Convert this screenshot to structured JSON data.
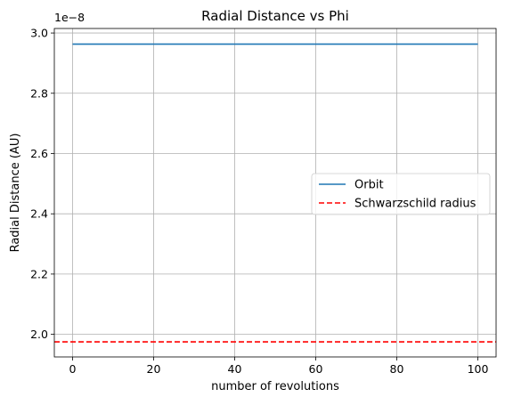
{
  "chart_data": {
    "type": "line",
    "title": "Radial Distance vs Phi",
    "xlabel": "number of revolutions",
    "ylabel": "Radial Distance (AU)",
    "y_offset_label": "1e−8",
    "xlim": [
      -4.5,
      104.5
    ],
    "ylim": [
      1.925,
      3.015
    ],
    "x_ticks": [
      0,
      20,
      40,
      60,
      80,
      100
    ],
    "x_tick_labels": [
      "0",
      "20",
      "40",
      "60",
      "80",
      "100"
    ],
    "y_ticks": [
      2.0,
      2.2,
      2.4,
      2.6,
      2.8,
      3.0
    ],
    "y_tick_labels": [
      "2.0",
      "2.2",
      "2.4",
      "2.6",
      "2.8",
      "3.0"
    ],
    "grid": true,
    "legend_position": "center-right",
    "series": [
      {
        "name": "Orbit",
        "style": "solid",
        "color": "#1f77b4",
        "x": [
          0,
          100
        ],
        "y": [
          2.963,
          2.963
        ]
      }
    ],
    "hlines": [
      {
        "name": "Schwarzschild radius",
        "style": "dashed",
        "color": "#ff0000",
        "y": 1.975
      }
    ]
  }
}
